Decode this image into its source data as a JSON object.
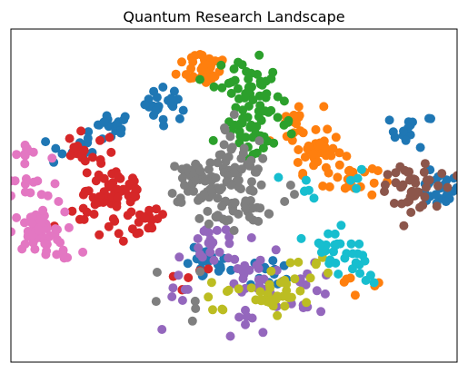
{
  "chart_data": {
    "type": "scatter",
    "title": "Quantum Research Landscape",
    "xlabel": "",
    "ylabel": "",
    "xlim": [
      -1.0,
      1.0
    ],
    "ylim": [
      -1.0,
      1.0
    ],
    "show_ticks": false,
    "grid": false,
    "legend": "none",
    "series": [
      {
        "color": "#1f77b4",
        "centers": [
          [
            -0.55,
            0.41
          ],
          [
            -0.3,
            0.55
          ],
          [
            0.8,
            0.39
          ],
          [
            0.91,
            0.03
          ],
          [
            -0.12,
            -0.42
          ],
          [
            0.17,
            -0.46
          ],
          [
            -0.73,
            0.27
          ]
        ],
        "spread": 0.05,
        "counts": [
          18,
          22,
          14,
          24,
          22,
          12,
          16
        ]
      },
      {
        "color": "#ff7f0e",
        "centers": [
          [
            -0.13,
            0.78
          ],
          [
            0.37,
            0.26
          ],
          [
            0.52,
            0.1
          ],
          [
            0.28,
            0.43
          ],
          [
            0.58,
            -0.47
          ]
        ],
        "spread": 0.06,
        "counts": [
          38,
          40,
          18,
          14,
          6
        ]
      },
      {
        "color": "#2ca02c",
        "centers": [
          [
            0.05,
            0.68
          ],
          [
            0.13,
            0.44
          ],
          [
            0.02,
            0.35
          ],
          [
            0.1,
            0.55
          ]
        ],
        "spread": 0.07,
        "counts": [
          26,
          28,
          14,
          14
        ]
      },
      {
        "color": "#d62728",
        "centers": [
          [
            -0.52,
            0.03
          ],
          [
            -0.67,
            0.24
          ],
          [
            -0.43,
            -0.17
          ],
          [
            -0.62,
            -0.12
          ],
          [
            -0.22,
            -0.54
          ]
        ],
        "spread": 0.07,
        "counts": [
          46,
          18,
          22,
          14,
          6
        ]
      },
      {
        "color": "#9467bd",
        "centers": [
          [
            -0.09,
            -0.3
          ],
          [
            0.11,
            -0.46
          ],
          [
            0.32,
            -0.57
          ],
          [
            0.1,
            -0.7
          ],
          [
            -0.23,
            -0.66
          ]
        ],
        "spread": 0.07,
        "counts": [
          22,
          22,
          16,
          8,
          6
        ]
      },
      {
        "color": "#8c564b",
        "centers": [
          [
            0.79,
            0.02
          ],
          [
            0.9,
            0.08
          ],
          [
            0.72,
            0.12
          ]
        ],
        "spread": 0.05,
        "counts": [
          26,
          8,
          8
        ]
      },
      {
        "color": "#e377c2",
        "centers": [
          [
            -0.88,
            -0.22
          ],
          [
            -0.9,
            0.02
          ],
          [
            -0.92,
            0.25
          ],
          [
            -0.78,
            -0.34
          ]
        ],
        "spread": 0.06,
        "counts": [
          46,
          14,
          10,
          8
        ]
      },
      {
        "color": "#7f7f7f",
        "centers": [
          [
            -0.14,
            0.09
          ],
          [
            0.0,
            0.14
          ],
          [
            0.08,
            0.0
          ],
          [
            -0.03,
            -0.12
          ],
          [
            -0.05,
            0.3
          ],
          [
            -0.28,
            -0.6
          ]
        ],
        "spread": 0.08,
        "counts": [
          46,
          34,
          24,
          18,
          12,
          6
        ]
      },
      {
        "color": "#bcbd22",
        "centers": [
          [
            0.14,
            -0.63
          ],
          [
            0.25,
            -0.55
          ],
          [
            -0.09,
            -0.61
          ],
          [
            0.35,
            -0.4
          ]
        ],
        "spread": 0.05,
        "counts": [
          18,
          12,
          8,
          6
        ]
      },
      {
        "color": "#17becf",
        "centers": [
          [
            0.49,
            -0.36
          ],
          [
            0.41,
            -0.28
          ],
          [
            0.3,
            0.04
          ],
          [
            0.6,
            -0.48
          ],
          [
            0.53,
            0.05
          ]
        ],
        "spread": 0.05,
        "counts": [
          20,
          10,
          6,
          4,
          4
        ]
      }
    ]
  }
}
